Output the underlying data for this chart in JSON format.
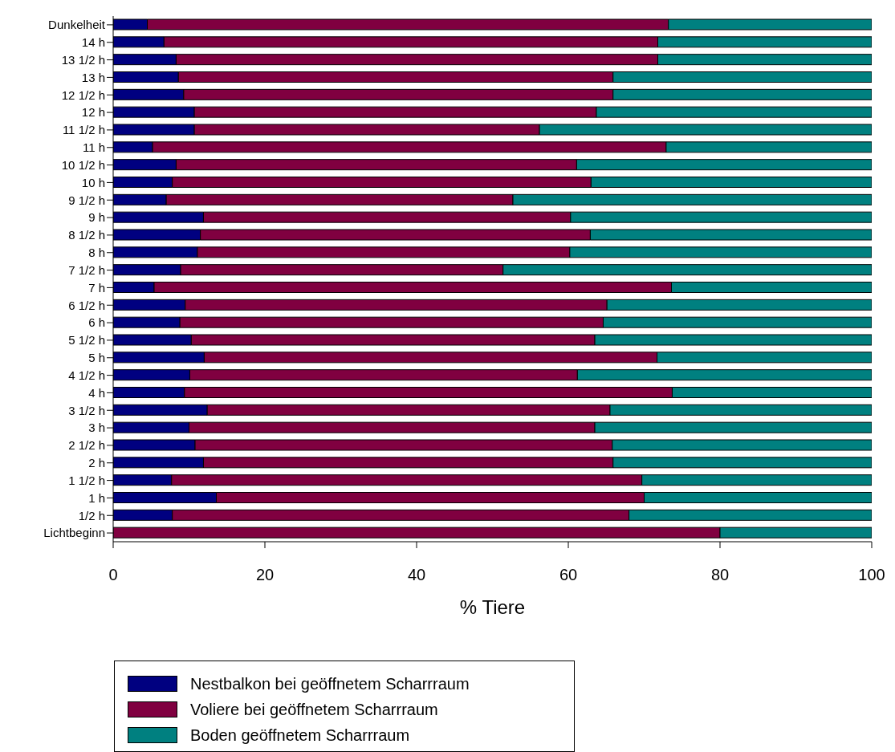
{
  "chart_data": {
    "type": "bar",
    "orientation": "horizontal",
    "stacked": true,
    "xlabel": "% Tiere",
    "xlim": [
      0,
      100
    ],
    "xticks": [
      0,
      20,
      40,
      60,
      80,
      100
    ],
    "legend": "bottom",
    "categories": [
      "Dunkelheit",
      "14 h",
      "13 1/2 h",
      "13 h",
      "12 1/2 h",
      "12 h",
      "11 1/2 h",
      "11 h",
      "10 1/2 h",
      "10 h",
      "9 1/2 h",
      "9 h",
      "8 1/2 h",
      "8 h",
      "7 1/2 h",
      "7 h",
      "6 1/2 h",
      "6 h",
      "5 1/2 h",
      "5 h",
      "4 1/2 h",
      "4 h",
      "3 1/2 h",
      "3 h",
      "2 1/2 h",
      "2 h",
      "1 1/2  h",
      "1 h",
      "1/2 h",
      "Lichtbeginn"
    ],
    "series": [
      {
        "name": "Nestbalkon bei geöffnetem Scharrraum",
        "color": "#000080",
        "values": [
          4.5,
          6.7,
          8.3,
          8.6,
          9.3,
          10.7,
          10.7,
          5.2,
          8.3,
          7.8,
          7.0,
          11.9,
          11.5,
          11.1,
          8.9,
          5.4,
          9.5,
          8.8,
          10.3,
          12.0,
          10.1,
          9.4,
          12.4,
          10.0,
          10.8,
          11.9,
          7.7,
          13.6,
          7.8,
          0
        ]
      },
      {
        "name": "Voliere bei geöffnetem Scharrraum",
        "color": "#800040",
        "values": [
          68.7,
          65.1,
          63.5,
          57.3,
          56.6,
          53.0,
          45.5,
          67.7,
          52.8,
          55.2,
          45.7,
          48.4,
          51.4,
          49.1,
          42.5,
          68.2,
          55.6,
          55.8,
          53.2,
          59.7,
          51.1,
          64.3,
          53.1,
          53.5,
          55.0,
          54.0,
          62.0,
          56.4,
          60.2,
          80.0
        ]
      },
      {
        "name": "Boden geöffnetem Scharrraum",
        "color": "#008080",
        "values": [
          26.8,
          28.2,
          28.2,
          34.1,
          34.1,
          36.3,
          43.8,
          27.1,
          38.9,
          37.0,
          47.3,
          39.7,
          37.1,
          39.8,
          48.6,
          26.4,
          34.9,
          35.4,
          36.5,
          28.3,
          38.8,
          26.3,
          34.5,
          36.5,
          34.2,
          34.1,
          30.3,
          30.0,
          32.0,
          20.0
        ]
      }
    ]
  }
}
